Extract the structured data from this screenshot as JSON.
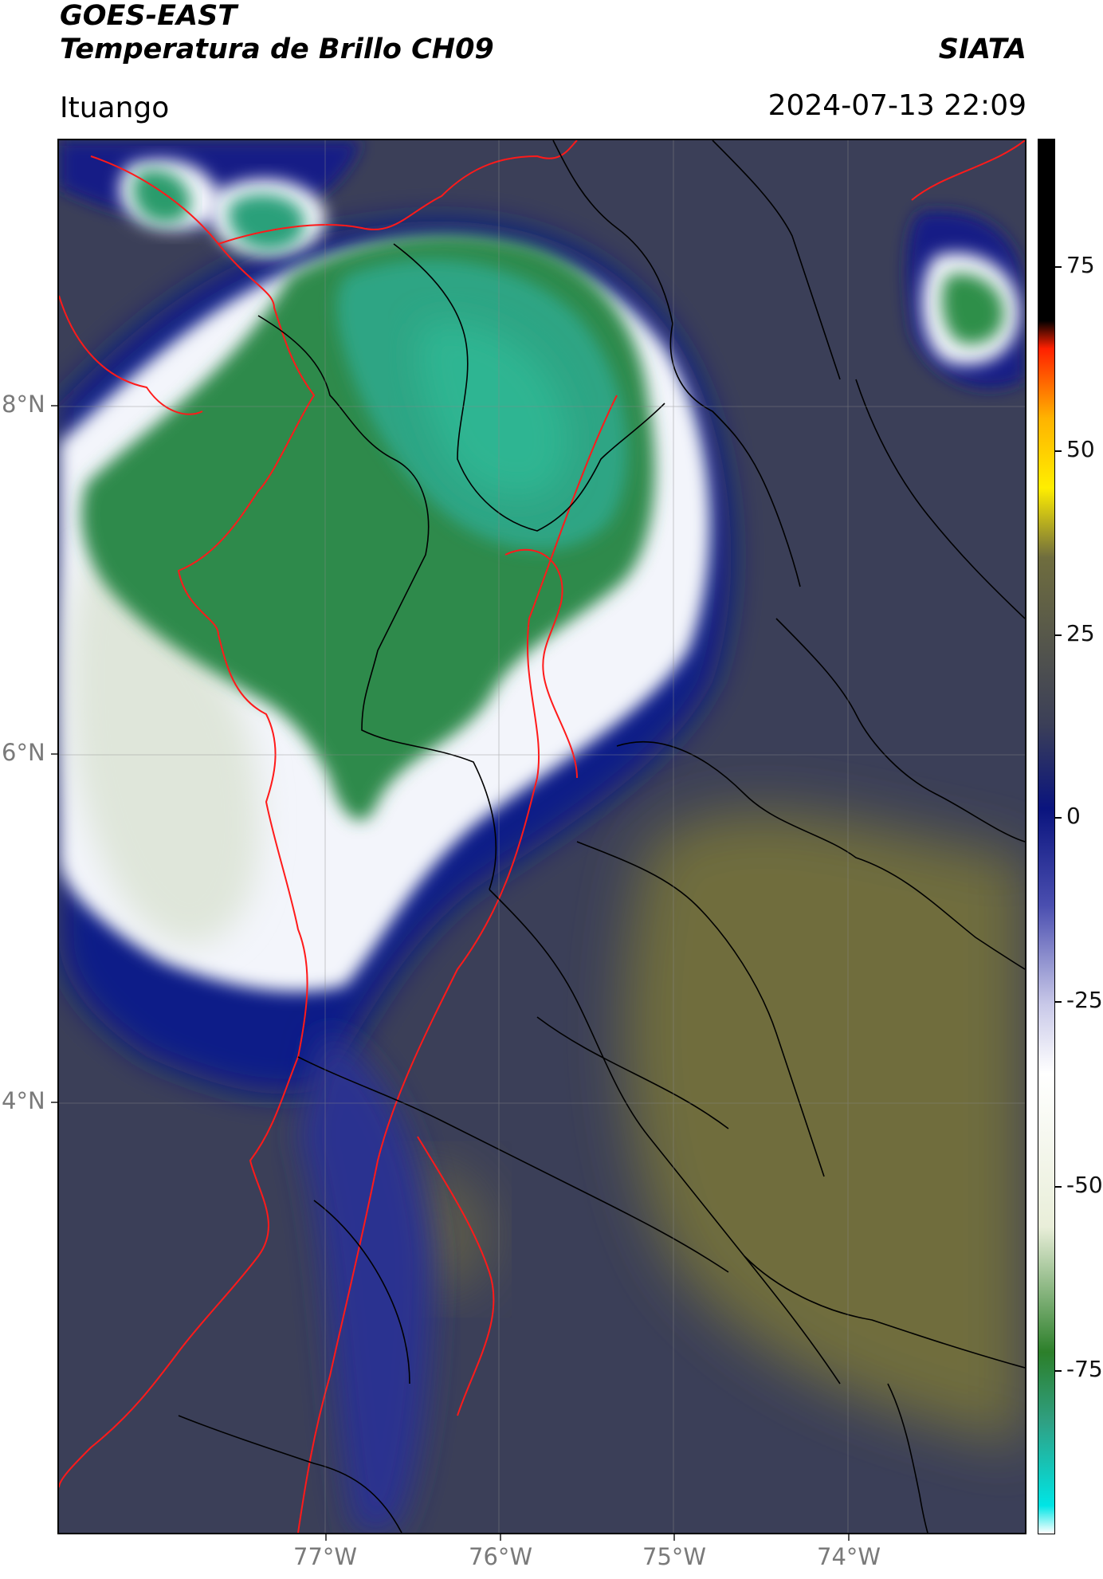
{
  "header": {
    "satellite": "GOES-EAST",
    "product": "Temperatura de Brillo CH09",
    "brand": "SIATA",
    "location": "Ituango",
    "datetime": "2024-07-13 22:09"
  },
  "map": {
    "lat_ticks": [
      "8°N",
      "6°N",
      "4°N"
    ],
    "lon_ticks": [
      "77°W",
      "76°W",
      "75°W",
      "74°W"
    ],
    "colors": {
      "background_field": "#3b3f58",
      "cold_cloud_top": "#2f8f5e",
      "coldest_core": "#2fb592",
      "cloud_edge": "#f3f5fb",
      "anvil_blue": "#101a88",
      "warm_dry_area": "#6f6d3e",
      "department_borders": "#ff1a1a",
      "municipal_borders": "#000000"
    }
  },
  "colorbar": {
    "labels": [
      "75",
      "50",
      "25",
      "0",
      "-25",
      "-50",
      "-75"
    ],
    "colors": [
      "#ffffff",
      "#00e5e5",
      "#2fa083",
      "#2c7f2a",
      "#e9eed9",
      "#ffffff",
      "#c8c8e8",
      "#4b4fb0",
      "#0a147e",
      "#3b3f58",
      "#6f6d3e",
      "#ffee00",
      "#ffb300",
      "#ff2000",
      "#000000"
    ]
  }
}
